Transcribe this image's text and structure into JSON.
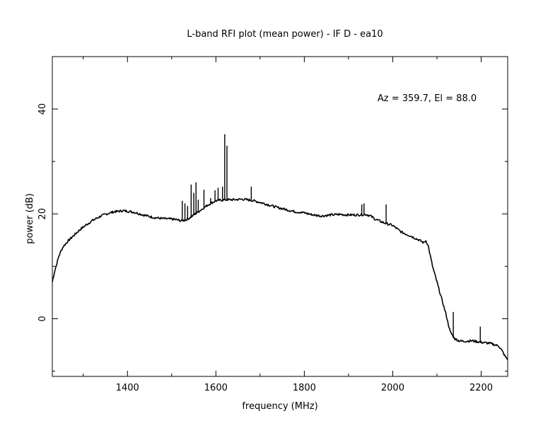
{
  "chart_data": {
    "type": "line",
    "title": "L-band RFI plot (mean power) - IF D - ea10",
    "xlabel": "frequency (MHz)",
    "ylabel": "power (dB)",
    "annotation": "Az = 359.7, El = 88.0",
    "xlim": [
      1230,
      2260
    ],
    "ylim": [
      -11,
      50
    ],
    "xticks": [
      1400,
      1600,
      1800,
      2000,
      2200
    ],
    "yticks": [
      0,
      20,
      40
    ],
    "xminor_step": 100,
    "yminor_step": 10,
    "grid": false,
    "line_color": "#000000",
    "series": [
      {
        "x": [
          1230,
          1235,
          1240,
          1245,
          1250,
          1255,
          1260,
          1270,
          1280,
          1290,
          1300,
          1320,
          1340,
          1360,
          1370,
          1380,
          1390,
          1400,
          1410,
          1420,
          1440,
          1460,
          1480,
          1500,
          1510,
          1520,
          1530,
          1540,
          1550,
          1560,
          1570,
          1580,
          1590,
          1600,
          1610,
          1620,
          1640,
          1660,
          1670,
          1680,
          1700,
          1720,
          1740,
          1760,
          1780,
          1800,
          1820,
          1840,
          1860,
          1880,
          1900,
          1920,
          1940,
          1950,
          1960,
          1980,
          2000,
          2020,
          2040,
          2060,
          2070,
          2075,
          2080,
          2085,
          2090,
          2100,
          2110,
          2120,
          2130,
          2140,
          2150,
          2160,
          2180,
          2200,
          2220,
          2240,
          2250,
          2255,
          2260
        ],
        "y": [
          7,
          9,
          10.5,
          12,
          13,
          13.8,
          14.3,
          15.2,
          16,
          16.8,
          17.5,
          18.7,
          19.6,
          20.2,
          20.4,
          20.5,
          20.6,
          20.5,
          20.4,
          20.2,
          19.7,
          19.3,
          19.1,
          19,
          18.9,
          18.7,
          18.8,
          19.2,
          19.8,
          20.4,
          21,
          21.6,
          22.1,
          22.5,
          22.6,
          22.7,
          22.7,
          22.8,
          22.7,
          22.6,
          22.2,
          21.7,
          21.2,
          20.8,
          20.4,
          20.2,
          19.8,
          19.6,
          19.8,
          19.9,
          19.8,
          19.8,
          19.9,
          19.6,
          19,
          18.3,
          17.8,
          16.5,
          15.8,
          15,
          14.5,
          14.9,
          14,
          12,
          10,
          7,
          4,
          1,
          -2.5,
          -3.8,
          -4.2,
          -4.3,
          -4.2,
          -4.5,
          -4.7,
          -5.2,
          -6.5,
          -7.3,
          -7.8
        ]
      }
    ],
    "spikes": [
      {
        "x": 1524,
        "y": 22.5
      },
      {
        "x": 1530,
        "y": 22
      },
      {
        "x": 1536,
        "y": 21.5
      },
      {
        "x": 1544,
        "y": 25.6
      },
      {
        "x": 1550,
        "y": 24
      },
      {
        "x": 1555,
        "y": 26
      },
      {
        "x": 1560,
        "y": 22.7
      },
      {
        "x": 1573,
        "y": 24.6
      },
      {
        "x": 1588,
        "y": 23
      },
      {
        "x": 1598,
        "y": 24.5
      },
      {
        "x": 1605,
        "y": 25
      },
      {
        "x": 1615,
        "y": 25.2
      },
      {
        "x": 1620,
        "y": 35.2
      },
      {
        "x": 1625,
        "y": 33
      },
      {
        "x": 1680,
        "y": 25.2
      },
      {
        "x": 1930,
        "y": 21.8
      },
      {
        "x": 1935,
        "y": 22
      },
      {
        "x": 1985,
        "y": 21.8
      },
      {
        "x": 2137,
        "y": 1.3
      },
      {
        "x": 2198,
        "y": -1.5
      }
    ]
  }
}
